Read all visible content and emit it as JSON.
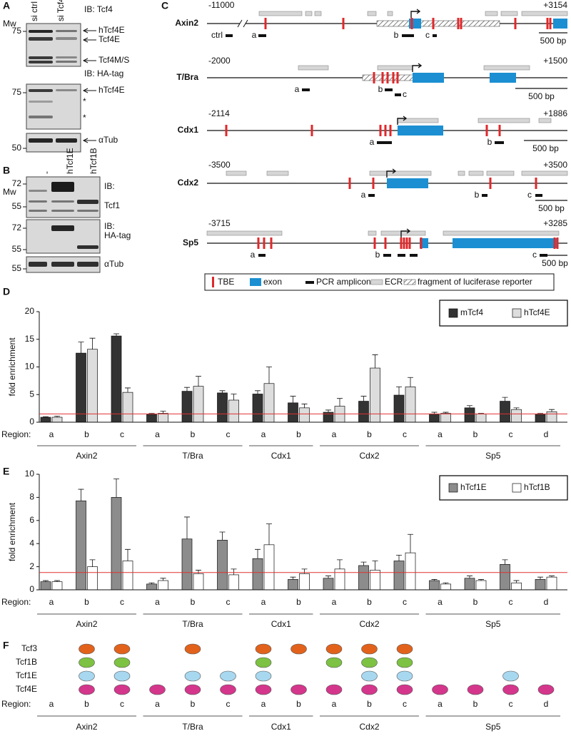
{
  "panel_a": {
    "label": "A",
    "mw": "Mw",
    "lanes": [
      "si ctrl",
      "si Tcf4"
    ],
    "blots": [
      {
        "antibody": [
          "IB: Tcf4"
        ],
        "markers": [
          75
        ],
        "bands": [
          "hTcf4E",
          "Tcf4E",
          "Tcf4M/S"
        ]
      },
      {
        "antibody": [
          "IB: HA-tag"
        ],
        "markers": [
          75
        ],
        "bands": [
          "hTcf4E",
          "*",
          "*"
        ]
      },
      {
        "antibody": [],
        "markers": [
          50
        ],
        "bands": [
          "αTub"
        ]
      }
    ]
  },
  "panel_b": {
    "label": "B",
    "mw": "Mw",
    "lanes": [
      "-",
      "hTcf1E",
      "hTcf1B"
    ],
    "blots": [
      {
        "antibody": [
          "IB:",
          "Tcf1"
        ],
        "markers": [
          72,
          55
        ]
      },
      {
        "antibody": [
          "IB:",
          "HA-tag"
        ],
        "markers": [
          72,
          55
        ]
      },
      {
        "antibody": [
          "αTub"
        ],
        "markers": [
          55
        ]
      }
    ]
  },
  "panel_c": {
    "label": "C",
    "genes": [
      {
        "name": "Axin2",
        "start": "-11000",
        "end": "+3154",
        "amplicons": [
          "ctrl",
          "a",
          "b",
          "c"
        ],
        "scale": "500 bp"
      },
      {
        "name": "T/Bra",
        "start": "-2000",
        "end": "+1500",
        "amplicons": [
          "a",
          "b",
          "c"
        ],
        "scale": "500 bp"
      },
      {
        "name": "Cdx1",
        "start": "-2114",
        "end": "+1886",
        "amplicons": [
          "a",
          "b"
        ],
        "scale": "500 bp"
      },
      {
        "name": "Cdx2",
        "start": "-3500",
        "end": "+3500",
        "amplicons": [
          "a",
          "b",
          "c"
        ],
        "scale": "500 bp"
      },
      {
        "name": "Sp5",
        "start": "-3715",
        "end": "+3285",
        "amplicons": [
          "a",
          "b",
          "c",
          "d"
        ],
        "scale": "500 bp"
      }
    ],
    "legend": [
      "TBE",
      "exon",
      "PCR amplicon",
      "ECR",
      "fragment of luciferase reporter"
    ]
  },
  "chart_data": [
    {
      "type": "bar",
      "panel": "D",
      "ylabel": "fold enrichment",
      "region_label": "Region:",
      "groups": [
        {
          "name": "Axin2",
          "categories": [
            "a",
            "b",
            "c"
          ]
        },
        {
          "name": "T/Bra",
          "categories": [
            "a",
            "b",
            "c"
          ]
        },
        {
          "name": "Cdx1",
          "categories": [
            "a",
            "b"
          ]
        },
        {
          "name": "Cdx2",
          "categories": [
            "a",
            "b",
            "c"
          ]
        },
        {
          "name": "Sp5",
          "categories": [
            "a",
            "b",
            "c",
            "d"
          ]
        }
      ],
      "series": [
        {
          "name": "mTcf4",
          "color": "#333333",
          "values": [
            0.9,
            12.5,
            15.6,
            1.4,
            5.6,
            5.3,
            5.1,
            3.5,
            1.8,
            3.8,
            4.9,
            1.5,
            2.6,
            3.8,
            1.4
          ],
          "errors": [
            0.1,
            2.0,
            0.4,
            0.2,
            0.7,
            0.4,
            0.6,
            1.2,
            0.4,
            0.9,
            1.5,
            0.3,
            0.4,
            0.7,
            0.2
          ]
        },
        {
          "name": "hTcf4E",
          "color": "#dddddd",
          "values": [
            0.9,
            13.2,
            5.4,
            1.6,
            6.5,
            4.0,
            7.0,
            2.6,
            2.9,
            9.8,
            6.4,
            1.6,
            1.5,
            2.3,
            1.9
          ],
          "errors": [
            0.2,
            2.0,
            0.8,
            0.4,
            1.8,
            1.1,
            3.0,
            0.7,
            1.4,
            2.4,
            1.7,
            0.2,
            0.1,
            0.3,
            0.4
          ]
        }
      ],
      "ylim": [
        0,
        20
      ],
      "yticks": [
        0,
        5,
        10,
        15,
        20
      ],
      "threshold": 1.5,
      "threshold_color": "#e03030",
      "legend": "upper right"
    },
    {
      "type": "bar",
      "panel": "E",
      "ylabel": "fold enrichment",
      "region_label": "Region:",
      "groups": [
        {
          "name": "Axin2",
          "categories": [
            "a",
            "b",
            "c"
          ]
        },
        {
          "name": "T/Bra",
          "categories": [
            "a",
            "b",
            "c"
          ]
        },
        {
          "name": "Cdx1",
          "categories": [
            "a",
            "b"
          ]
        },
        {
          "name": "Cdx2",
          "categories": [
            "a",
            "b",
            "c"
          ]
        },
        {
          "name": "Sp5",
          "categories": [
            "a",
            "b",
            "c",
            "d"
          ]
        }
      ],
      "series": [
        {
          "name": "hTcf1E",
          "color": "#8c8c8c",
          "values": [
            0.7,
            7.7,
            8.0,
            0.5,
            4.4,
            4.3,
            2.7,
            0.9,
            1.0,
            2.1,
            2.5,
            0.8,
            1.0,
            2.2,
            0.9
          ],
          "errors": [
            0.1,
            1.0,
            1.6,
            0.1,
            1.9,
            0.7,
            0.8,
            0.2,
            0.2,
            0.3,
            0.5,
            0.1,
            0.2,
            0.4,
            0.2
          ]
        },
        {
          "name": "hTcf1B",
          "color": "#ffffff",
          "values": [
            0.7,
            2.0,
            2.5,
            0.8,
            1.4,
            1.3,
            3.9,
            1.4,
            1.8,
            1.7,
            3.2,
            0.5,
            0.8,
            0.6,
            1.1
          ],
          "errors": [
            0.1,
            0.6,
            1.0,
            0.2,
            0.3,
            0.5,
            1.8,
            0.4,
            0.8,
            0.8,
            1.6,
            0.1,
            0.1,
            0.2,
            0.1
          ]
        }
      ],
      "ylim": [
        0,
        10
      ],
      "yticks": [
        0,
        2,
        4,
        6,
        8,
        10
      ],
      "threshold": 1.5,
      "threshold_color": "#e03030",
      "legend": "upper right"
    }
  ],
  "panel_f": {
    "label": "F",
    "region_label": "Region:",
    "groups": [
      {
        "name": "Axin2",
        "categories": [
          "a",
          "b",
          "c"
        ]
      },
      {
        "name": "T/Bra",
        "categories": [
          "a",
          "b",
          "c"
        ]
      },
      {
        "name": "Cdx1",
        "categories": [
          "a",
          "b"
        ]
      },
      {
        "name": "Cdx2",
        "categories": [
          "a",
          "b",
          "c"
        ]
      },
      {
        "name": "Sp5",
        "categories": [
          "a",
          "b",
          "c",
          "d"
        ]
      }
    ],
    "rows": [
      {
        "name": "Tcf3",
        "color": "#e2621b",
        "present": [
          false,
          true,
          true,
          false,
          true,
          false,
          true,
          true,
          true,
          true,
          true,
          false,
          false,
          false,
          false
        ]
      },
      {
        "name": "Tcf1B",
        "color": "#7dc242",
        "present": [
          false,
          true,
          true,
          false,
          false,
          false,
          true,
          false,
          true,
          true,
          true,
          false,
          false,
          false,
          false
        ]
      },
      {
        "name": "Tcf1E",
        "color": "#a8d8f0",
        "present": [
          false,
          true,
          true,
          false,
          true,
          true,
          true,
          false,
          false,
          true,
          true,
          false,
          false,
          true,
          false
        ]
      },
      {
        "name": "Tcf4E",
        "color": "#d4368c",
        "present": [
          false,
          true,
          true,
          true,
          true,
          true,
          true,
          true,
          true,
          true,
          true,
          true,
          true,
          true,
          true
        ]
      }
    ]
  }
}
